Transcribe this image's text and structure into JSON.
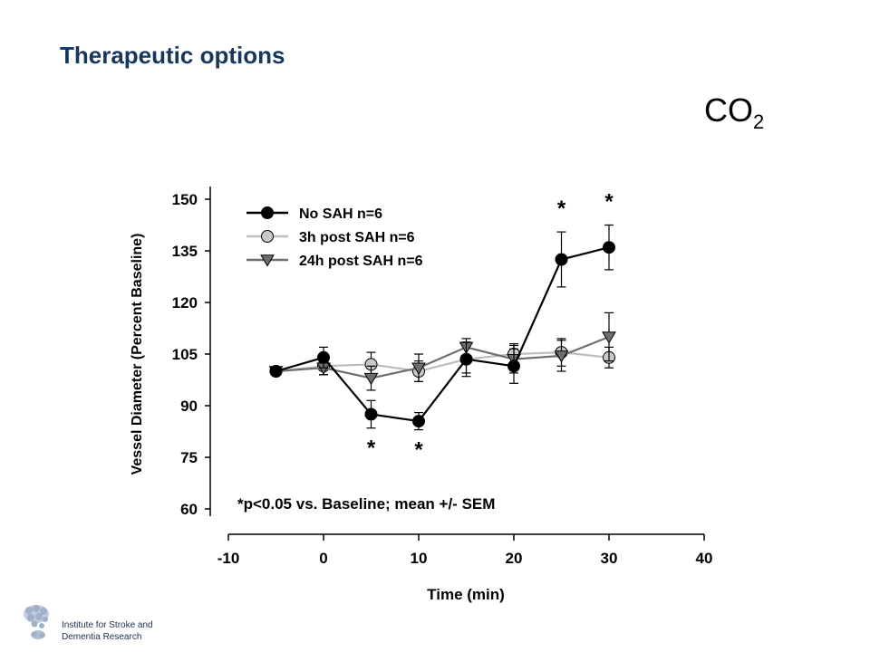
{
  "slide": {
    "title": "Therapeutic options",
    "stimulus": "CO",
    "stimulus_sub": "2"
  },
  "logo": {
    "line1": "Institute for Stroke and",
    "line2": "Dementia Research"
  },
  "chart_data": {
    "type": "line",
    "title": "",
    "xlabel": "Time (min)",
    "ylabel": "Vessel Diameter (Percent Baseline)",
    "xlim": [
      -10,
      40
    ],
    "ylim": [
      60,
      150
    ],
    "xticks": [
      -10,
      0,
      10,
      20,
      30,
      40
    ],
    "yticks": [
      60,
      75,
      90,
      105,
      120,
      135,
      150
    ],
    "grid": false,
    "legend_position": "top-left",
    "series": [
      {
        "name": "No SAH n=6",
        "color": "#000000",
        "marker": "circle",
        "marker_fill": "#000000",
        "x": [
          -5,
          0,
          5,
          10,
          15,
          20,
          25,
          30
        ],
        "y": [
          100,
          104,
          87.5,
          85.5,
          103.5,
          101.5,
          132.5,
          136
        ],
        "err": [
          0.8,
          3,
          4,
          2.5,
          5,
          5,
          8,
          6.5
        ]
      },
      {
        "name": "3h post SAH n=6",
        "color": "#bdbdbd",
        "marker": "circle",
        "marker_fill": "#c8c8c8",
        "x": [
          -5,
          0,
          5,
          10,
          15,
          20,
          25,
          30
        ],
        "y": [
          100,
          101.5,
          102,
          100,
          103.5,
          105,
          105.5,
          104
        ],
        "err": [
          0.8,
          2.5,
          3.5,
          3,
          4,
          3,
          4,
          3
        ]
      },
      {
        "name": "24h post SAH n=6",
        "color": "#6e6e6e",
        "marker": "triangle-down",
        "marker_fill": "#6e6e6e",
        "x": [
          -5,
          0,
          5,
          10,
          15,
          20,
          25,
          30
        ],
        "y": [
          100,
          101,
          98,
          101,
          107,
          103.5,
          104.5,
          110
        ],
        "err": [
          0.8,
          2,
          3.5,
          4,
          2.5,
          4,
          4.5,
          7
        ]
      }
    ],
    "significance": [
      {
        "label": "*",
        "x": 5,
        "position": "below"
      },
      {
        "label": "*",
        "x": 10,
        "position": "below"
      },
      {
        "label": "*",
        "x": 25,
        "position": "above"
      },
      {
        "label": "*",
        "x": 30,
        "position": "above"
      }
    ],
    "annotation": "*p<0.05 vs. Baseline; mean +/- SEM"
  }
}
